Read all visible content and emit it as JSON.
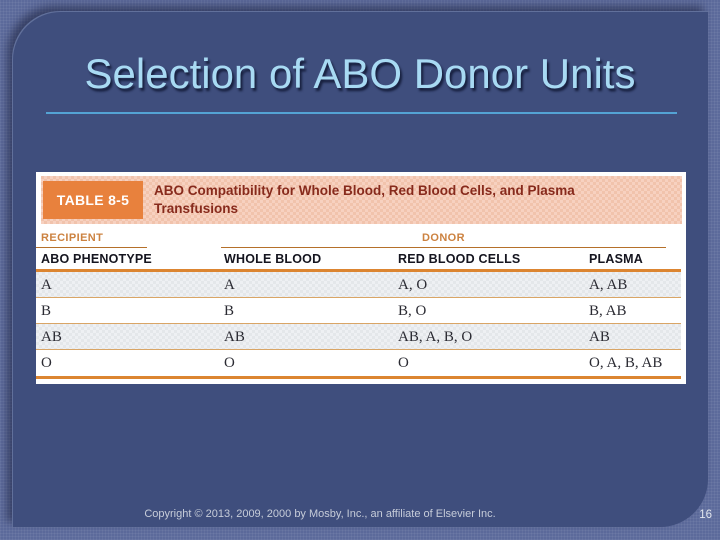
{
  "slide": {
    "title": "Selection of ABO Donor Units",
    "copyright": "Copyright © 2013, 2009, 2000 by Mosby, Inc., an affiliate of Elsevier Inc.",
    "page_number": "16"
  },
  "table": {
    "label": "TABLE 8-5",
    "caption": "ABO Compatibility for Whole Blood, Red Blood Cells, and Plasma Transfusions",
    "group_headers": {
      "recipient": "RECIPIENT",
      "donor": "DONOR"
    },
    "columns": [
      "ABO PHENOTYPE",
      "WHOLE BLOOD",
      "RED BLOOD CELLS",
      "PLASMA"
    ],
    "rows": [
      [
        "A",
        "A",
        "A, O",
        "A, AB"
      ],
      [
        "B",
        "B",
        "B, O",
        "B, AB"
      ],
      [
        "AB",
        "AB",
        "AB, A, B, O",
        "AB"
      ],
      [
        "O",
        "O",
        "O",
        "O, A, B, AB"
      ]
    ]
  },
  "colors": {
    "outer_background": "#5c6a9b",
    "panel_background": "#3f4e7d",
    "title_text": "#a8daf3",
    "title_rule": "#54a3d4",
    "caption_band": "#f1c3ac",
    "table_label_badge": "#e8813d",
    "caption_text": "#872a1c",
    "group_header_text": "#cc8240",
    "rule_orange": "#dc8531",
    "row_separator": "#d9a566",
    "shaded_row": "#e4e7ea"
  }
}
